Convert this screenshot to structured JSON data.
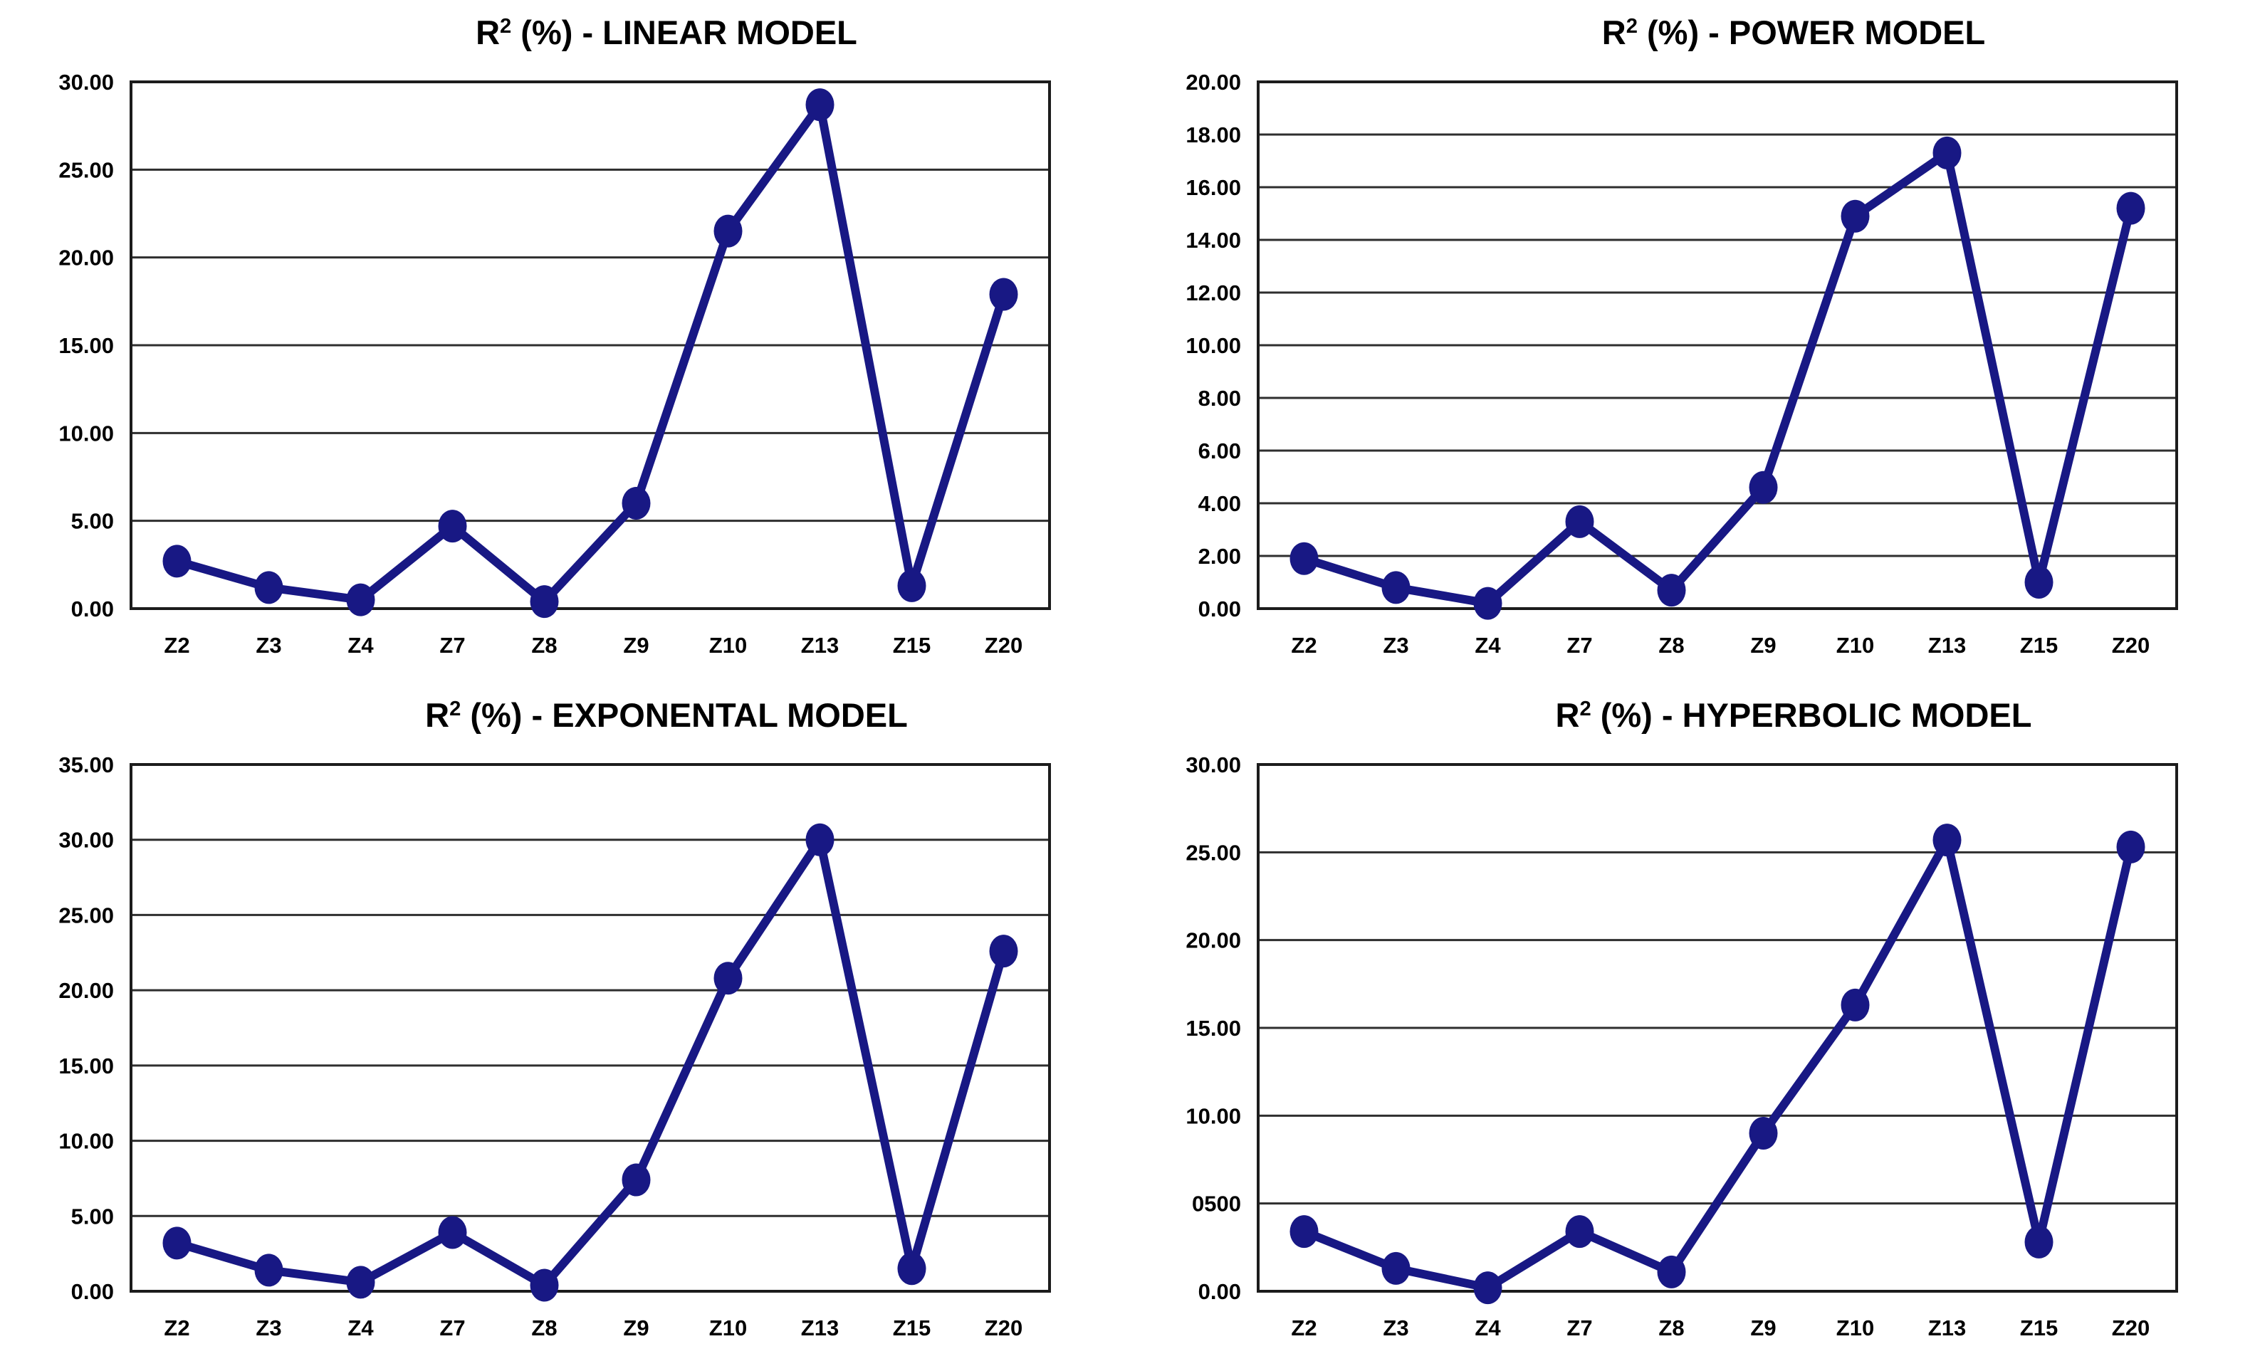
{
  "figure": {
    "background": "#ffffff"
  },
  "colors": {
    "line": "#181884",
    "marker": "#181884",
    "grid": "#2e2e2e",
    "border": "#1c1c1c",
    "text": "#000000"
  },
  "chart_data": [
    {
      "type": "line",
      "title": "R² (%) - LINEAR MODEL",
      "title_base": "R",
      "title_sup": "2",
      "title_rest": " (%) - LINEAR MODEL",
      "categories": [
        "Z2",
        "Z3",
        "Z4",
        "Z7",
        "Z8",
        "Z9",
        "Z10",
        "Z13",
        "Z15",
        "Z20"
      ],
      "values": [
        2.7,
        1.2,
        0.5,
        4.7,
        0.4,
        6.0,
        21.5,
        28.7,
        1.3,
        17.9
      ],
      "ylim": [
        0,
        30
      ],
      "ystep": 5,
      "ytick_labels": [
        "30.00",
        "25.00",
        "20.00",
        "15.00",
        "10.00",
        "5.00",
        "0.00"
      ],
      "xlabel": "",
      "ylabel": "",
      "grid": true,
      "legend": "none"
    },
    {
      "type": "line",
      "title": "R² (%) - POWER MODEL",
      "title_base": "R",
      "title_sup": "2",
      "title_rest": " (%) - POWER MODEL",
      "categories": [
        "Z2",
        "Z3",
        "Z4",
        "Z7",
        "Z8",
        "Z9",
        "Z10",
        "Z13",
        "Z15",
        "Z20"
      ],
      "values": [
        1.9,
        0.8,
        0.2,
        3.3,
        0.7,
        4.6,
        14.9,
        17.3,
        1.0,
        15.2
      ],
      "ylim": [
        0,
        20
      ],
      "ystep": 2,
      "ytick_labels": [
        "20.00",
        "18.00",
        "16.00",
        "14.00",
        "12.00",
        "10.00",
        "8.00",
        "6.00",
        "4.00",
        "2.00",
        "0.00"
      ],
      "xlabel": "",
      "ylabel": "",
      "grid": true,
      "legend": "none"
    },
    {
      "type": "line",
      "title": "R² (%) - EXPONENTAL MODEL",
      "title_base": "R",
      "title_sup": "2",
      "title_rest": " (%) - EXPONENTAL MODEL",
      "categories": [
        "Z2",
        "Z3",
        "Z4",
        "Z7",
        "Z8",
        "Z9",
        "Z10",
        "Z13",
        "Z15",
        "Z20"
      ],
      "values": [
        3.2,
        1.4,
        0.6,
        3.9,
        0.4,
        7.4,
        20.8,
        30.0,
        1.5,
        22.6
      ],
      "ylim": [
        0,
        35
      ],
      "ystep": 5,
      "ytick_labels": [
        "35.00",
        "30.00",
        "25.00",
        "20.00",
        "15.00",
        "10.00",
        "5.00",
        "0.00"
      ],
      "xlabel": "",
      "ylabel": "",
      "grid": true,
      "legend": "none"
    },
    {
      "type": "line",
      "title": "R² (%) - HYPERBOLIC MODEL",
      "title_base": "R",
      "title_sup": "2",
      "title_rest": " (%) - HYPERBOLIC MODEL",
      "categories": [
        "Z2",
        "Z3",
        "Z4",
        "Z7",
        "Z8",
        "Z9",
        "Z10",
        "Z13",
        "Z15",
        "Z20"
      ],
      "values": [
        3.4,
        1.3,
        0.2,
        3.4,
        1.1,
        9.0,
        16.3,
        25.7,
        2.8,
        25.3
      ],
      "ylim": [
        0,
        30
      ],
      "ystep": 5,
      "ytick_labels": [
        "30.00",
        "25.00",
        "20.00",
        "15.00",
        "10.00",
        "0500",
        "0.00"
      ],
      "xlabel": "",
      "ylabel": "",
      "grid": true,
      "legend": "none"
    }
  ]
}
